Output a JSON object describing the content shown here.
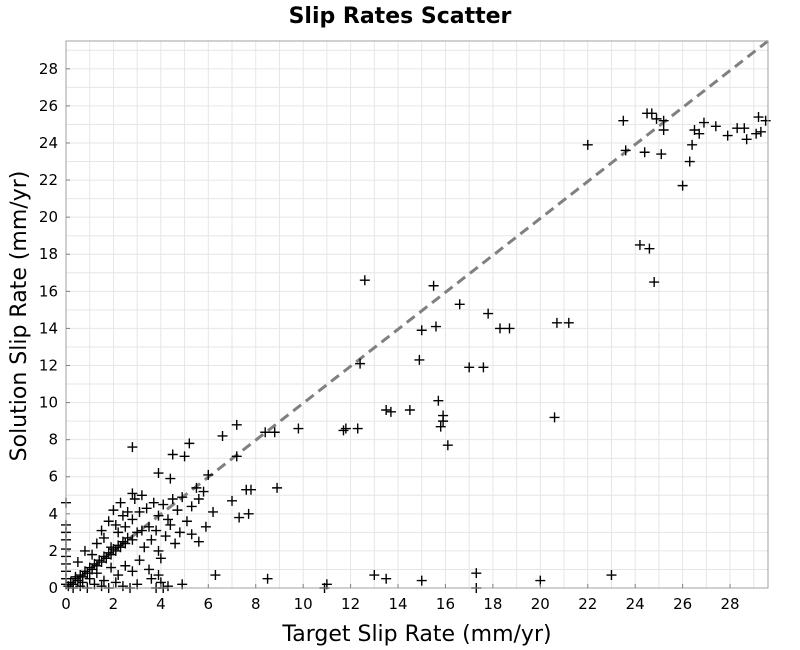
{
  "chart_data": {
    "type": "scatter",
    "title": "Slip Rates Scatter",
    "xlabel": "Target Slip Rate (mm/yr)",
    "ylabel": "Solution Slip Rate (mm/yr)",
    "xlim": [
      0,
      29.6
    ],
    "ylim": [
      0,
      29.5
    ],
    "xticks": [
      "0",
      "2",
      "4",
      "6",
      "8",
      "10",
      "12",
      "14",
      "16",
      "18",
      "20",
      "22",
      "24",
      "26",
      "28"
    ],
    "yticks": [
      "0",
      "2",
      "4",
      "6",
      "8",
      "10",
      "12",
      "14",
      "16",
      "18",
      "20",
      "22",
      "24",
      "26",
      "28"
    ],
    "grid": true,
    "marker": "plus",
    "marker_color": "#000000",
    "reference_line": {
      "style": "dashed",
      "color": "#808080",
      "from": [
        0,
        0
      ],
      "to": [
        29.6,
        29.6
      ]
    },
    "points": [
      [
        0.0,
        4.6
      ],
      [
        0.0,
        3.4
      ],
      [
        0.0,
        3.0
      ],
      [
        0.0,
        2.6
      ],
      [
        0.0,
        2.1
      ],
      [
        0.0,
        1.7
      ],
      [
        0.0,
        1.3
      ],
      [
        0.0,
        0.9
      ],
      [
        0.0,
        0.5
      ],
      [
        0.0,
        0.2
      ],
      [
        0.1,
        0.1
      ],
      [
        0.2,
        0.3
      ],
      [
        0.3,
        0.2
      ],
      [
        0.4,
        0.5
      ],
      [
        0.5,
        0.4
      ],
      [
        0.6,
        0.7
      ],
      [
        0.7,
        0.6
      ],
      [
        0.8,
        0.9
      ],
      [
        0.9,
        0.8
      ],
      [
        1.0,
        1.1
      ],
      [
        1.1,
        1.0
      ],
      [
        1.2,
        1.3
      ],
      [
        1.3,
        1.2
      ],
      [
        1.4,
        1.5
      ],
      [
        1.5,
        1.4
      ],
      [
        1.6,
        1.7
      ],
      [
        1.7,
        1.6
      ],
      [
        1.8,
        1.9
      ],
      [
        1.9,
        1.8
      ],
      [
        2.0,
        2.1
      ],
      [
        2.1,
        2.0
      ],
      [
        2.2,
        2.3
      ],
      [
        2.3,
        2.2
      ],
      [
        2.4,
        2.5
      ],
      [
        2.5,
        2.4
      ],
      [
        2.6,
        2.7
      ],
      [
        2.8,
        2.6
      ],
      [
        3.0,
        3.0
      ],
      [
        3.2,
        3.1
      ],
      [
        3.5,
        3.3
      ],
      [
        0.3,
        0.0
      ],
      [
        0.6,
        0.1
      ],
      [
        0.9,
        0.0
      ],
      [
        1.2,
        0.2
      ],
      [
        1.5,
        0.1
      ],
      [
        1.8,
        0.0
      ],
      [
        2.1,
        0.3
      ],
      [
        2.4,
        0.1
      ],
      [
        2.7,
        0.0
      ],
      [
        3.0,
        0.2
      ],
      [
        0.5,
        1.4
      ],
      [
        0.8,
        2.0
      ],
      [
        1.1,
        1.8
      ],
      [
        1.3,
        2.4
      ],
      [
        1.6,
        2.7
      ],
      [
        1.9,
        2.2
      ],
      [
        2.2,
        3.0
      ],
      [
        2.5,
        3.3
      ],
      [
        2.8,
        3.7
      ],
      [
        3.1,
        4.1
      ],
      [
        0.4,
        0.6
      ],
      [
        0.7,
        0.3
      ],
      [
        1.0,
        0.5
      ],
      [
        1.3,
        0.8
      ],
      [
        1.6,
        0.4
      ],
      [
        1.9,
        1.1
      ],
      [
        2.2,
        0.7
      ],
      [
        2.5,
        1.2
      ],
      [
        2.8,
        0.9
      ],
      [
        3.1,
        1.5
      ],
      [
        1.5,
        3.1
      ],
      [
        1.8,
        3.6
      ],
      [
        2.0,
        4.2
      ],
      [
        2.3,
        4.6
      ],
      [
        2.6,
        4.1
      ],
      [
        2.9,
        4.8
      ],
      [
        3.2,
        5.0
      ],
      [
        2.8,
        5.1
      ],
      [
        2.4,
        3.9
      ],
      [
        2.1,
        3.4
      ],
      [
        3.3,
        2.2
      ],
      [
        3.6,
        2.6
      ],
      [
        3.8,
        3.1
      ],
      [
        3.9,
        2.0
      ],
      [
        4.0,
        1.6
      ],
      [
        4.2,
        2.8
      ],
      [
        4.4,
        3.4
      ],
      [
        4.6,
        2.4
      ],
      [
        4.8,
        3.0
      ],
      [
        3.5,
        1.0
      ],
      [
        3.4,
        4.3
      ],
      [
        3.7,
        4.6
      ],
      [
        3.9,
        3.9
      ],
      [
        4.1,
        4.5
      ],
      [
        4.3,
        3.7
      ],
      [
        4.5,
        4.8
      ],
      [
        4.7,
        4.2
      ],
      [
        4.9,
        4.9
      ],
      [
        5.1,
        3.6
      ],
      [
        5.3,
        4.4
      ],
      [
        3.6,
        0.5
      ],
      [
        3.9,
        0.7
      ],
      [
        4.0,
        0.3
      ],
      [
        4.1,
        0.0
      ],
      [
        4.3,
        0.1
      ],
      [
        3.8,
        0.0
      ],
      [
        4.9,
        0.2
      ],
      [
        5.3,
        2.9
      ],
      [
        5.6,
        2.5
      ],
      [
        5.9,
        3.3
      ],
      [
        3.9,
        6.2
      ],
      [
        4.4,
        5.9
      ],
      [
        4.5,
        7.2
      ],
      [
        5.0,
        7.1
      ],
      [
        5.2,
        7.8
      ],
      [
        5.5,
        5.4
      ],
      [
        5.6,
        4.8
      ],
      [
        5.8,
        5.2
      ],
      [
        6.0,
        6.1
      ],
      [
        6.2,
        4.1
      ],
      [
        2.8,
        7.6
      ],
      [
        6.3,
        0.7
      ],
      [
        6.6,
        8.2
      ],
      [
        7.0,
        4.7
      ],
      [
        7.2,
        8.8
      ],
      [
        7.2,
        7.1
      ],
      [
        7.3,
        3.8
      ],
      [
        7.6,
        5.3
      ],
      [
        7.7,
        4.0
      ],
      [
        7.8,
        5.3
      ],
      [
        8.4,
        8.4
      ],
      [
        8.5,
        0.5
      ],
      [
        8.8,
        8.4
      ],
      [
        8.9,
        5.4
      ],
      [
        9.8,
        8.6
      ],
      [
        10.9,
        0.0
      ],
      [
        11.0,
        0.2
      ],
      [
        11.7,
        8.5
      ],
      [
        11.8,
        8.6
      ],
      [
        12.3,
        8.6
      ],
      [
        12.4,
        12.1
      ],
      [
        12.6,
        16.6
      ],
      [
        13.0,
        0.7
      ],
      [
        13.5,
        0.5
      ],
      [
        13.5,
        9.6
      ],
      [
        13.7,
        9.5
      ],
      [
        14.5,
        9.6
      ],
      [
        14.9,
        12.3
      ],
      [
        15.0,
        0.4
      ],
      [
        15.0,
        13.9
      ],
      [
        15.5,
        16.3
      ],
      [
        15.6,
        14.1
      ],
      [
        15.7,
        10.1
      ],
      [
        15.8,
        8.7
      ],
      [
        15.9,
        9.3
      ],
      [
        15.9,
        9.0
      ],
      [
        16.1,
        7.7
      ],
      [
        16.6,
        15.3
      ],
      [
        17.0,
        11.9
      ],
      [
        17.3,
        0.8
      ],
      [
        17.3,
        0.0
      ],
      [
        17.6,
        11.9
      ],
      [
        17.8,
        14.8
      ],
      [
        18.3,
        14.0
      ],
      [
        18.7,
        14.0
      ],
      [
        20.0,
        0.4
      ],
      [
        20.6,
        9.2
      ],
      [
        20.7,
        14.3
      ],
      [
        21.2,
        14.3
      ],
      [
        22.0,
        23.9
      ],
      [
        23.0,
        0.7
      ],
      [
        23.5,
        25.2
      ],
      [
        23.6,
        23.6
      ],
      [
        24.2,
        18.5
      ],
      [
        24.4,
        23.5
      ],
      [
        24.5,
        25.6
      ],
      [
        24.6,
        18.3
      ],
      [
        24.7,
        25.6
      ],
      [
        24.8,
        16.5
      ],
      [
        24.9,
        25.3
      ],
      [
        25.1,
        23.4
      ],
      [
        25.2,
        25.2
      ],
      [
        25.2,
        24.7
      ],
      [
        26.0,
        21.7
      ],
      [
        26.3,
        23.0
      ],
      [
        26.4,
        23.9
      ],
      [
        26.5,
        24.7
      ],
      [
        26.7,
        24.5
      ],
      [
        26.9,
        25.1
      ],
      [
        27.4,
        24.9
      ],
      [
        27.9,
        24.4
      ],
      [
        28.3,
        24.8
      ],
      [
        28.6,
        24.8
      ],
      [
        28.7,
        24.2
      ],
      [
        29.1,
        24.5
      ],
      [
        29.2,
        25.4
      ],
      [
        29.3,
        24.6
      ],
      [
        29.5,
        25.2
      ]
    ]
  }
}
